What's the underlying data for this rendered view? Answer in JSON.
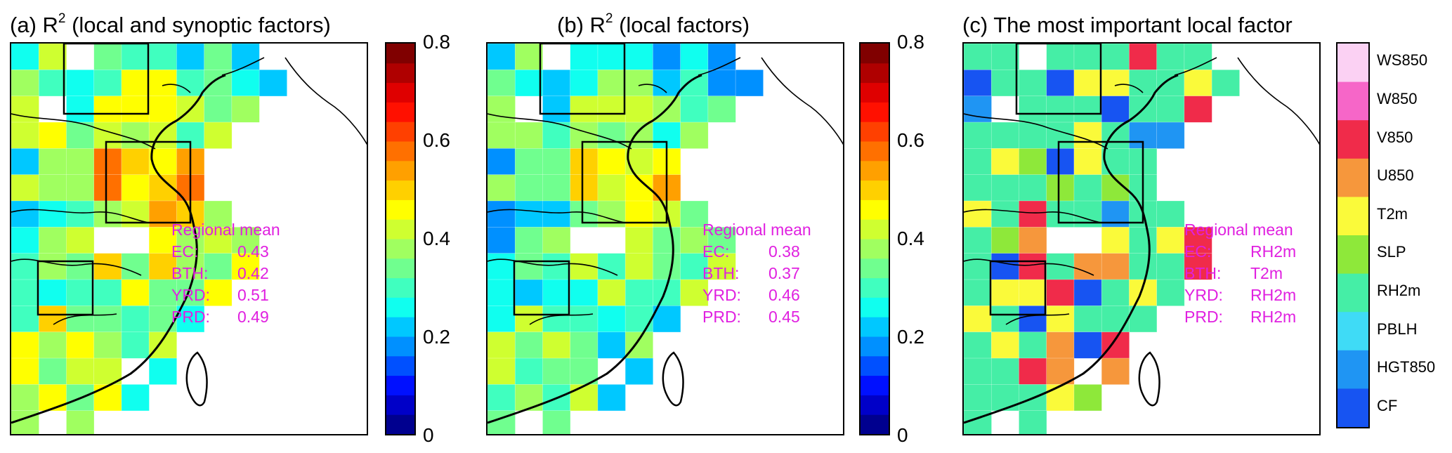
{
  "panels": [
    {
      "prefix": "(a) R",
      "sup": "2",
      "suffix": " (local and synoptic factors)",
      "annotation": {
        "heading": "Regional mean",
        "rows": [
          {
            "label": "EC:",
            "value": "0.43"
          },
          {
            "label": "BTH:",
            "value": "0.42"
          },
          {
            "label": "YRD:",
            "value": "0.51"
          },
          {
            "label": "PRD:",
            "value": "0.49"
          }
        ]
      }
    },
    {
      "prefix": "(b) R",
      "sup": "2",
      "suffix": " (local factors)",
      "annotation": {
        "heading": "Regional mean",
        "rows": [
          {
            "label": "EC:",
            "value": "0.38"
          },
          {
            "label": "BTH:",
            "value": "0.37"
          },
          {
            "label": "YRD:",
            "value": "0.46"
          },
          {
            "label": "PRD:",
            "value": "0.45"
          }
        ]
      }
    },
    {
      "prefix": "(c) The most important local factor",
      "sup": "",
      "suffix": "",
      "annotation": {
        "heading": "Regional mean",
        "rows": [
          {
            "label": "EC:",
            "value": "RH2m"
          },
          {
            "label": "BTH:",
            "value": "T2m"
          },
          {
            "label": "YRD:",
            "value": "RH2m"
          },
          {
            "label": "PRD:",
            "value": "RH2m"
          }
        ]
      }
    }
  ],
  "colorbar_continuous": {
    "ticks": [
      "0",
      "0.2",
      "0.4",
      "0.6",
      "0.8"
    ],
    "range": [
      0,
      0.8
    ],
    "levels": 20,
    "colors": [
      "#00008f",
      "#0000c8",
      "#0010ff",
      "#0050ff",
      "#0090ff",
      "#00c8ff",
      "#10ffef",
      "#40ffbf",
      "#70ff8f",
      "#a0ff60",
      "#cfff30",
      "#ffff00",
      "#ffd000",
      "#ffa000",
      "#ff7000",
      "#ff4000",
      "#ff1000",
      "#df0000",
      "#af0000",
      "#800000"
    ]
  },
  "colorbar_categorical": {
    "categories": [
      "WS850",
      "W850",
      "V850",
      "U850",
      "T2m",
      "SLP",
      "RH2m",
      "PBLH",
      "HGT850",
      "CF"
    ],
    "colors": [
      "#fbd1f3",
      "#f666c8",
      "#f02b4a",
      "#f6973c",
      "#fafa3a",
      "#8ee83a",
      "#45eea6",
      "#3fdbf6",
      "#1f95f3",
      "#1754f2"
    ]
  },
  "chart_data": [
    {
      "type": "heatmap",
      "title": "(a) R2 (local and synoptic factors)",
      "colorbar_range": [
        0,
        0.8
      ],
      "regional_mean": {
        "EC": 0.43,
        "BTH": 0.42,
        "YRD": 0.51,
        "PRD": 0.49
      }
    },
    {
      "type": "heatmap",
      "title": "(b) R2 (local factors)",
      "colorbar_range": [
        0,
        0.8
      ],
      "regional_mean": {
        "EC": 0.38,
        "BTH": 0.37,
        "YRD": 0.46,
        "PRD": 0.45
      }
    },
    {
      "type": "heatmap",
      "title": "(c) The most important local factor",
      "categories": [
        "WS850",
        "W850",
        "V850",
        "U850",
        "T2m",
        "SLP",
        "RH2m",
        "PBLH",
        "HGT850",
        "CF"
      ],
      "regional_mean": {
        "EC": "RH2m",
        "BTH": "T2m",
        "YRD": "RH2m",
        "PRD": "RH2m"
      }
    }
  ]
}
